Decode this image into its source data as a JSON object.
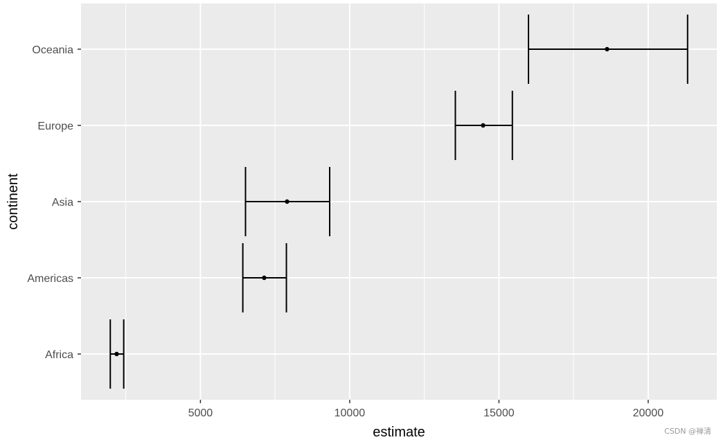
{
  "chart_data": {
    "type": "errorbar",
    "categories": [
      "Africa",
      "Americas",
      "Asia",
      "Europe",
      "Oceania"
    ],
    "estimate": [
      2193.8,
      7136.1,
      7902.2,
      14469.5,
      18621.6
    ],
    "lower": [
      1980,
      6420,
      6510,
      13540,
      15990
    ],
    "upper": [
      2430,
      7880,
      9330,
      15450,
      21320
    ],
    "xlabel": "estimate",
    "ylabel": "continent",
    "xlim": [
      1000,
      22300
    ],
    "xticks": [
      5000,
      10000,
      15000,
      20000
    ],
    "xtick_labels": [
      "5000",
      "10000",
      "15000",
      "20000"
    ],
    "grid": true,
    "colors": {
      "panel": "#ebebeb",
      "grid": "#ffffff",
      "marks": "#000000",
      "text": "#4d4d4d"
    }
  },
  "watermark": "CSDN @禅清"
}
